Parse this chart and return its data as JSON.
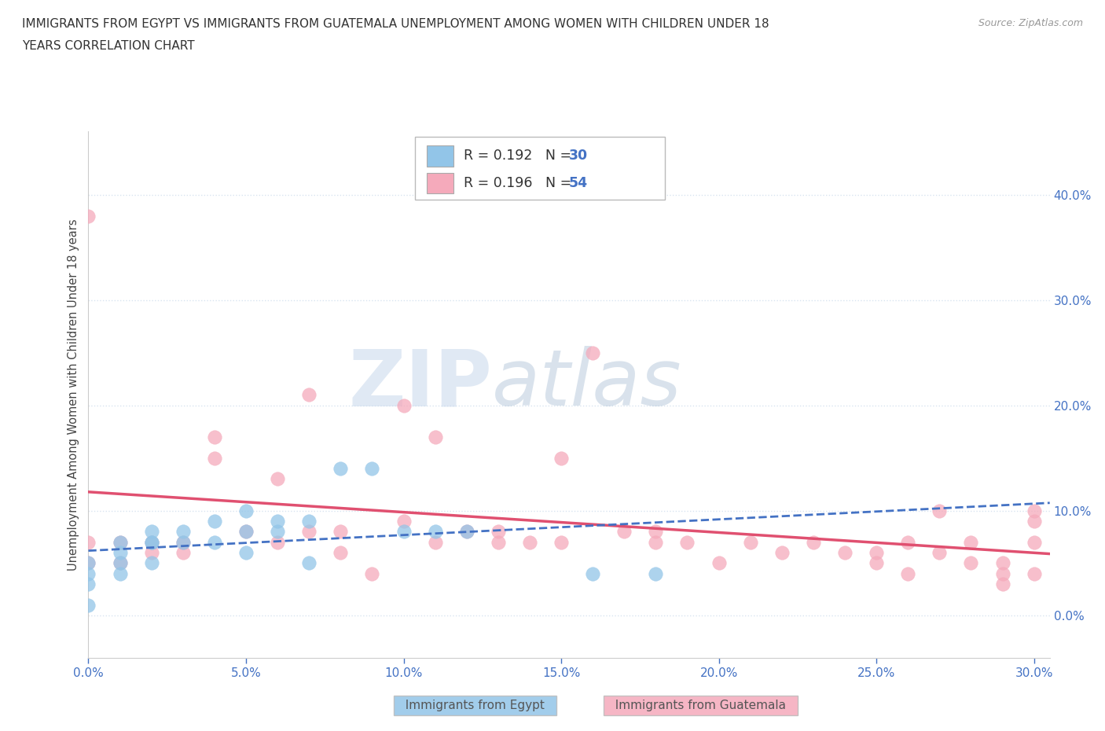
{
  "title_line1": "IMMIGRANTS FROM EGYPT VS IMMIGRANTS FROM GUATEMALA UNEMPLOYMENT AMONG WOMEN WITH CHILDREN UNDER 18",
  "title_line2": "YEARS CORRELATION CHART",
  "source": "Source: ZipAtlas.com",
  "ylabel": "Unemployment Among Women with Children Under 18 years",
  "xlim": [
    0.0,
    0.305
  ],
  "ylim": [
    -0.04,
    0.46
  ],
  "color_egypt": "#92C5E8",
  "color_guatemala": "#F5AABB",
  "trend_egypt_color": "#4472C4",
  "trend_guatemala_color": "#E05070",
  "watermark_zip": "ZIP",
  "watermark_atlas": "atlas",
  "watermark_color_zip": "#C8D8EC",
  "watermark_color_atlas": "#A0B8D0",
  "legend_color1": "#92C5E8",
  "legend_color2": "#F5AABB",
  "tick_color": "#4472C4",
  "grid_color": "#D8E4F0",
  "background_color": "#FFFFFF",
  "egypt_x": [
    0.0,
    0.0,
    0.0,
    0.0,
    0.01,
    0.01,
    0.01,
    0.01,
    0.02,
    0.02,
    0.02,
    0.02,
    0.03,
    0.03,
    0.04,
    0.04,
    0.05,
    0.05,
    0.05,
    0.06,
    0.06,
    0.07,
    0.07,
    0.08,
    0.09,
    0.1,
    0.11,
    0.12,
    0.16,
    0.18
  ],
  "egypt_y": [
    0.05,
    0.04,
    0.03,
    0.01,
    0.06,
    0.04,
    0.05,
    0.07,
    0.07,
    0.05,
    0.07,
    0.08,
    0.08,
    0.07,
    0.07,
    0.09,
    0.06,
    0.08,
    0.1,
    0.08,
    0.09,
    0.09,
    0.05,
    0.14,
    0.14,
    0.08,
    0.08,
    0.08,
    0.04,
    0.04
  ],
  "guatemala_x": [
    0.0,
    0.0,
    0.0,
    0.01,
    0.01,
    0.02,
    0.02,
    0.03,
    0.03,
    0.04,
    0.04,
    0.05,
    0.06,
    0.06,
    0.07,
    0.07,
    0.08,
    0.08,
    0.09,
    0.1,
    0.1,
    0.11,
    0.11,
    0.12,
    0.13,
    0.13,
    0.14,
    0.15,
    0.15,
    0.16,
    0.17,
    0.18,
    0.18,
    0.19,
    0.2,
    0.21,
    0.22,
    0.23,
    0.24,
    0.25,
    0.25,
    0.26,
    0.26,
    0.27,
    0.27,
    0.28,
    0.28,
    0.29,
    0.29,
    0.29,
    0.3,
    0.3,
    0.3,
    0.3
  ],
  "guatemala_y": [
    0.07,
    0.05,
    0.38,
    0.07,
    0.05,
    0.07,
    0.06,
    0.07,
    0.06,
    0.15,
    0.17,
    0.08,
    0.13,
    0.07,
    0.21,
    0.08,
    0.08,
    0.06,
    0.04,
    0.2,
    0.09,
    0.17,
    0.07,
    0.08,
    0.08,
    0.07,
    0.07,
    0.15,
    0.07,
    0.25,
    0.08,
    0.08,
    0.07,
    0.07,
    0.05,
    0.07,
    0.06,
    0.07,
    0.06,
    0.06,
    0.05,
    0.07,
    0.04,
    0.1,
    0.06,
    0.07,
    0.05,
    0.05,
    0.04,
    0.03,
    0.09,
    0.07,
    0.04,
    0.1
  ]
}
